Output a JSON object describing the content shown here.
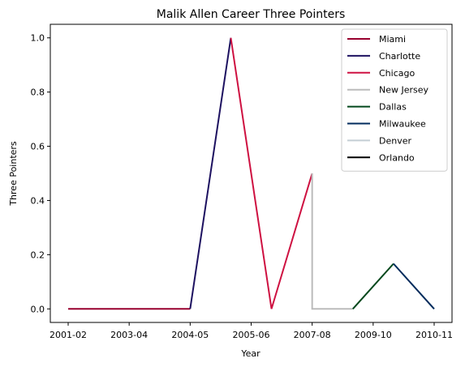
{
  "chart_data": {
    "type": "line",
    "title": "Malik Allen Career Three Pointers",
    "xlabel": "Year",
    "ylabel": "Three Pointers",
    "x_ticks": [
      "2001-02",
      "2003-04",
      "2004-05",
      "2005-06",
      "2007-08",
      "2009-10",
      "2010-11"
    ],
    "yticks": [
      "0.0",
      "0.2",
      "0.4",
      "0.6",
      "0.8",
      "1.0"
    ],
    "ylim": [
      -0.05,
      1.05
    ],
    "grid": false,
    "legend_position": "top-right",
    "series": [
      {
        "name": "Miami",
        "color": "#98002e",
        "points": [
          [
            0,
            0
          ],
          [
            1.5,
            0
          ],
          [
            3,
            0
          ]
        ]
      },
      {
        "name": "Charlotte",
        "color": "#1d1160",
        "points": [
          [
            3,
            0
          ],
          [
            4,
            1.0
          ]
        ]
      },
      {
        "name": "Chicago",
        "color": "#ce1141",
        "points": [
          [
            4,
            1.0
          ],
          [
            5,
            0
          ],
          [
            6,
            0.5
          ]
        ]
      },
      {
        "name": "New Jersey",
        "color": "#bbbbbb",
        "points": [
          [
            6,
            0.5
          ],
          [
            6,
            0
          ],
          [
            7,
            0
          ]
        ]
      },
      {
        "name": "Dallas",
        "color": "#00471b",
        "points": [
          [
            7,
            0
          ],
          [
            8,
            0.1667
          ]
        ]
      },
      {
        "name": "Milwaukee",
        "color": "#002b5c",
        "points": [
          [
            8,
            0.1667
          ],
          [
            9,
            0
          ]
        ]
      },
      {
        "name": "Denver",
        "color": "#c4ced4",
        "points": []
      },
      {
        "name": "Orlando",
        "color": "#000000",
        "points": []
      }
    ]
  }
}
